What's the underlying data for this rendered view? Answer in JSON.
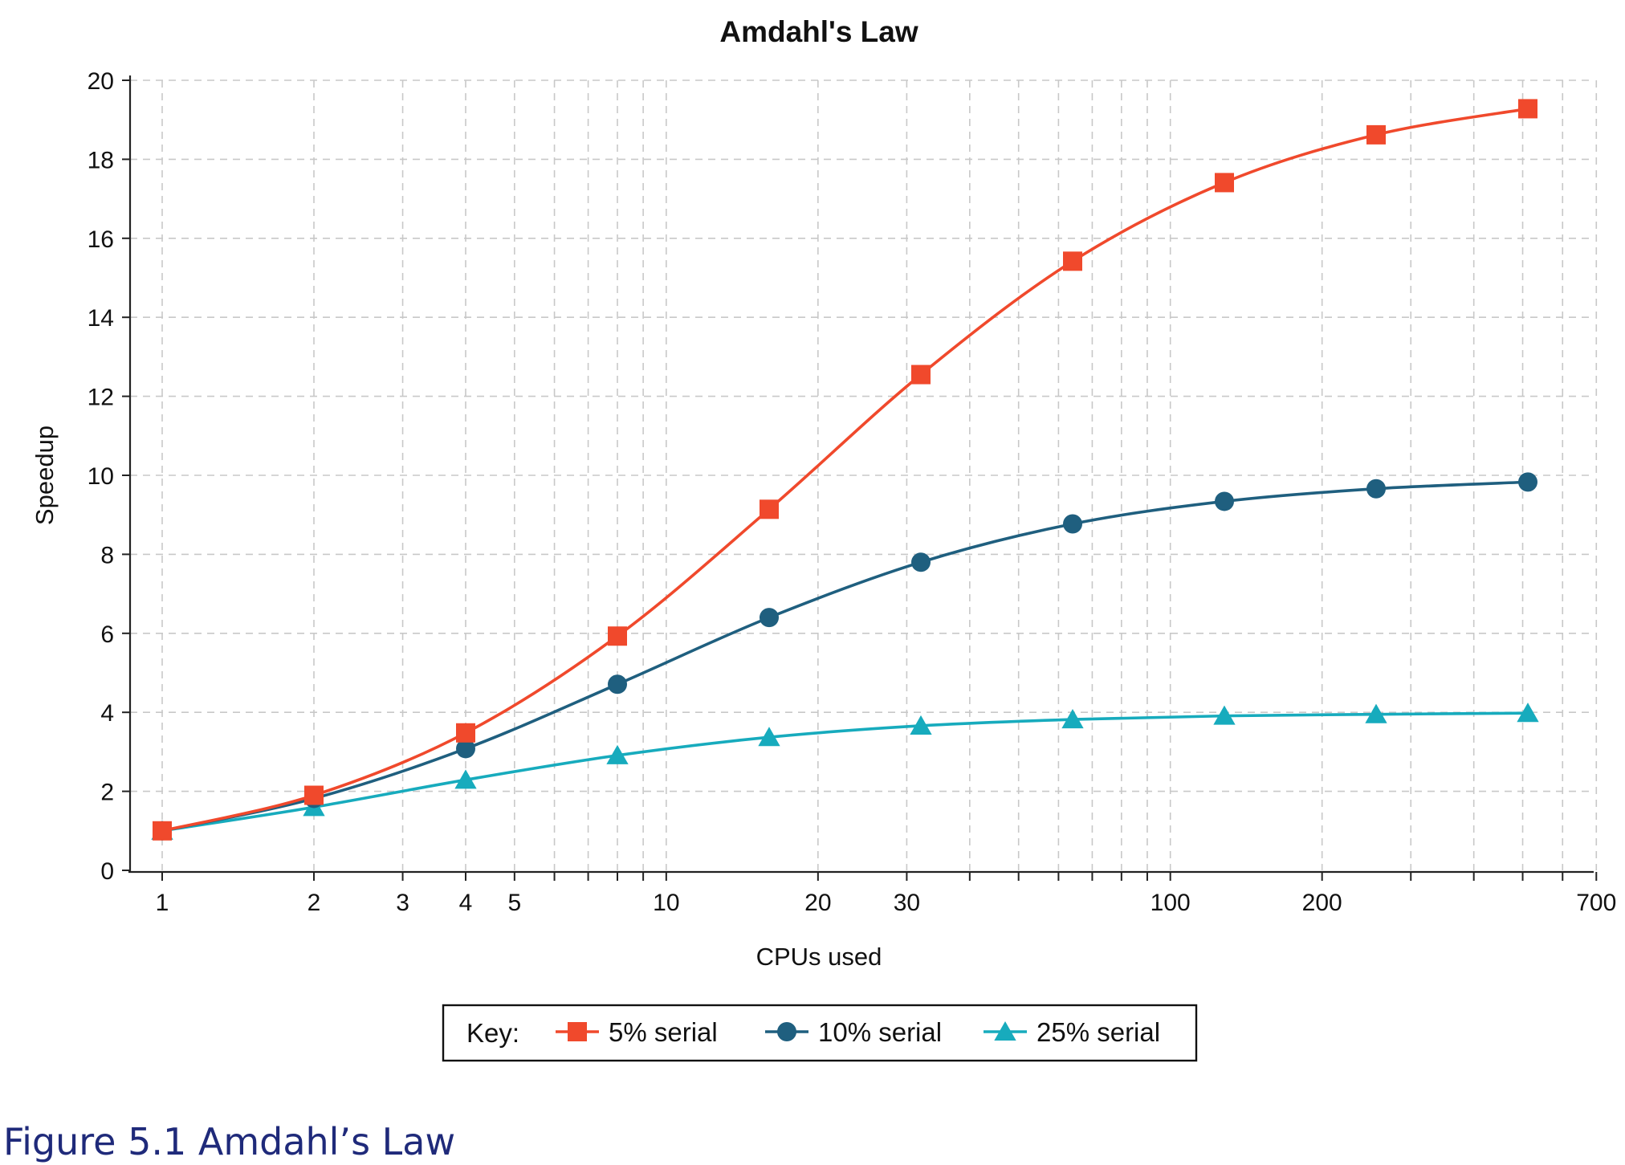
{
  "chart_data": {
    "type": "line",
    "title": "Amdahl's Law",
    "xlabel": "CPUs used",
    "ylabel": "Speedup",
    "xscale": "log2",
    "xlim": [
      0.85,
      700
    ],
    "ylim": [
      0,
      20
    ],
    "x_ticks": [
      1,
      2,
      3,
      4,
      5,
      10,
      20,
      30,
      100,
      200,
      700
    ],
    "y_ticks": [
      0,
      2,
      4,
      6,
      8,
      10,
      12,
      14,
      16,
      18,
      20
    ],
    "x_minor_gridlines": [
      6,
      7,
      8,
      9,
      40,
      50,
      60,
      70,
      80,
      90,
      300,
      400,
      500,
      600
    ],
    "grid": true,
    "x": [
      1,
      2,
      4,
      8,
      16,
      32,
      64,
      128,
      256,
      512
    ],
    "series": [
      {
        "name": "5% serial",
        "marker": "square",
        "color": "#f0492c",
        "values": [
          1.0,
          1.9,
          3.48,
          5.93,
          9.14,
          12.55,
          15.42,
          17.41,
          18.62,
          19.28
        ]
      },
      {
        "name": "10% serial",
        "marker": "circle",
        "color": "#1f5f7f",
        "values": [
          1.0,
          1.82,
          3.08,
          4.71,
          6.4,
          7.8,
          8.77,
          9.34,
          9.66,
          9.83
        ]
      },
      {
        "name": "25% serial",
        "marker": "triangle",
        "color": "#17abbd",
        "values": [
          1.0,
          1.6,
          2.29,
          2.91,
          3.37,
          3.66,
          3.82,
          3.91,
          3.95,
          3.98
        ]
      }
    ],
    "legend": {
      "position": "bottom-center",
      "prefix": "Key:"
    }
  },
  "caption": "Figure 5.1 Amdahl’s Law"
}
